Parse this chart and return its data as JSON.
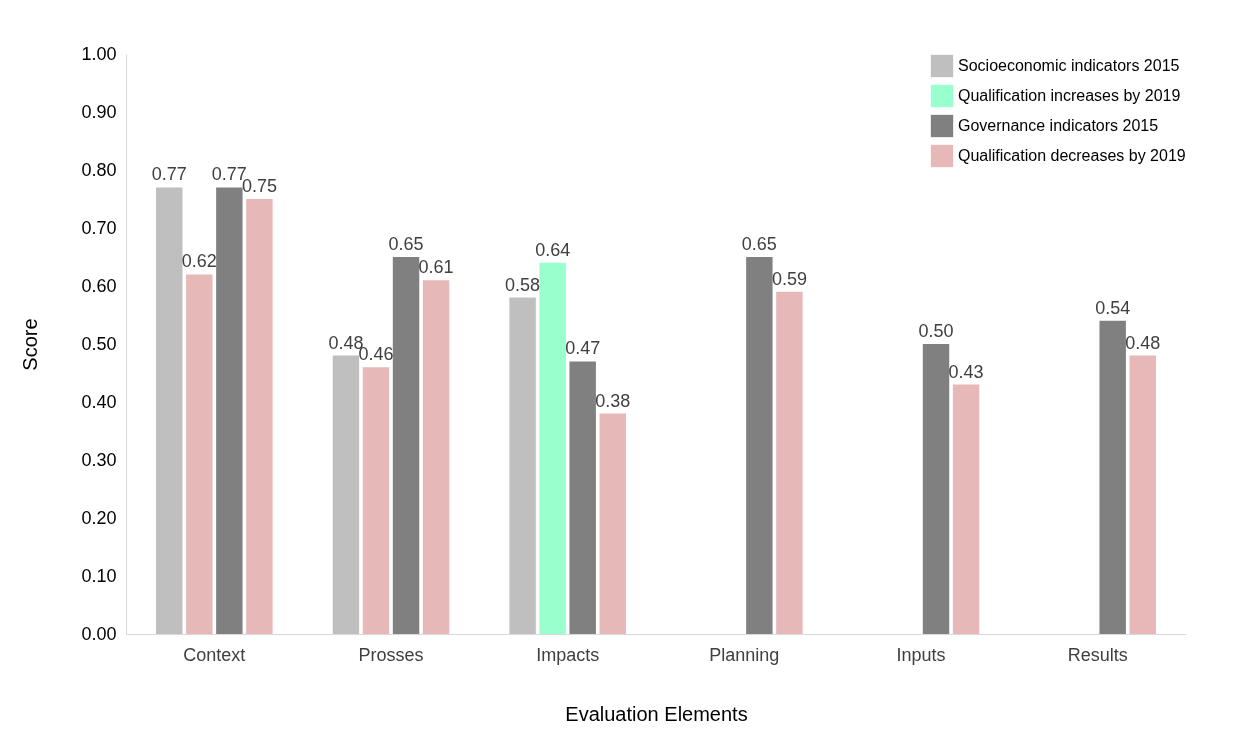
{
  "chart_data": {
    "type": "bar",
    "xlabel": "Evaluation Elements",
    "ylabel": "Score",
    "categories": [
      "Context",
      "Prosses",
      "Impacts",
      "Planning",
      "Inputs",
      "Results"
    ],
    "series": [
      {
        "name": "Socioeconomic indicators 2015",
        "color": "#bfbfbf",
        "values": [
          0.77,
          0.48,
          0.58,
          null,
          null,
          null
        ],
        "value_labels": [
          "0.77",
          "0.48",
          "0.58",
          null,
          null,
          null
        ]
      },
      {
        "name": "Qualification increases by 2019",
        "color": "#99ffcc",
        "values": [
          null,
          null,
          0.64,
          null,
          null,
          null
        ],
        "value_labels": [
          null,
          null,
          "0.64",
          null,
          null,
          null
        ]
      },
      {
        "color": "#e6b8b7",
        "values": [
          0.62,
          0.46,
          null,
          null,
          null,
          null
        ],
        "value_labels": [
          "0.62",
          "0.46",
          null,
          null,
          null,
          null
        ]
      },
      {
        "name": "Governance indicators 2015",
        "color": "#808080",
        "values": [
          0.77,
          0.65,
          0.47,
          0.65,
          0.5,
          0.54
        ],
        "value_labels": [
          "0.77",
          "0.65",
          "0.47",
          "0.65",
          "0.50",
          "0.54"
        ]
      },
      {
        "name": "Qualification decreases by 2019",
        "color": "#e6b8b7",
        "values": [
          0.75,
          0.61,
          0.38,
          0.59,
          0.43,
          0.48
        ],
        "value_labels": [
          "0.75",
          "0.61",
          "0.38",
          "0.59",
          "0.43",
          "0.48"
        ]
      }
    ],
    "ylim": [
      0,
      1
    ],
    "yticks": [
      {
        "value": 0,
        "label": "0.00"
      },
      {
        "value": 0.1,
        "label": "0.10"
      },
      {
        "value": 0.2,
        "label": "0.20"
      },
      {
        "value": 0.3,
        "label": "0.30"
      },
      {
        "value": 0.4,
        "label": "0.40"
      },
      {
        "value": 0.5,
        "label": "0.50"
      },
      {
        "value": 0.6,
        "label": "0.60"
      },
      {
        "value": 0.7,
        "label": "0.70"
      },
      {
        "value": 0.8,
        "label": "0.80"
      },
      {
        "value": 0.9,
        "label": "0.90"
      },
      {
        "value": 1,
        "label": "1.00"
      }
    ],
    "grid": false,
    "legend": "top right"
  }
}
